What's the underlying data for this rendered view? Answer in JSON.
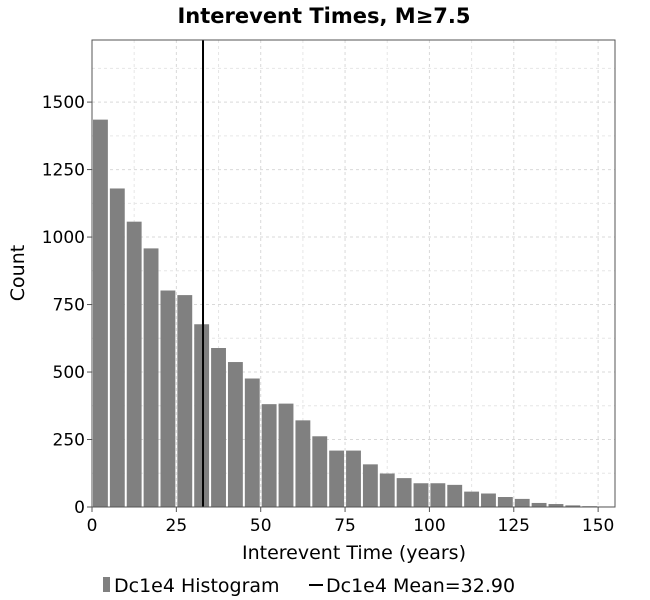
{
  "chart_data": {
    "type": "bar",
    "title": "Interevent Times, M≥7.5",
    "xlabel": "Interevent Time (years)",
    "ylabel": "Count",
    "xlim": [
      0,
      155
    ],
    "ylim": [
      0,
      1730
    ],
    "x_ticks": [
      0,
      25,
      50,
      75,
      100,
      125,
      150
    ],
    "y_ticks": [
      0,
      250,
      500,
      750,
      1000,
      1250,
      1500
    ],
    "grid": true,
    "bin_width": 5,
    "series": [
      {
        "name": "Dc1e4 Histogram",
        "color": "#808080",
        "bin_starts": [
          0,
          5,
          10,
          15,
          20,
          25,
          30,
          35,
          40,
          45,
          50,
          55,
          60,
          65,
          70,
          75,
          80,
          85,
          90,
          95,
          100,
          105,
          110,
          115,
          120,
          125,
          130,
          135,
          140,
          145,
          150
        ],
        "values": [
          1435,
          1180,
          1057,
          958,
          802,
          785,
          677,
          589,
          537,
          476,
          381,
          383,
          321,
          262,
          209,
          209,
          158,
          124,
          107,
          88,
          88,
          82,
          57,
          50,
          37,
          30,
          15,
          11,
          6,
          3,
          2
        ]
      }
    ],
    "mean_line": {
      "name": "Dc1e4 Mean=32.90",
      "x": 32.9,
      "color": "#000000"
    },
    "legend": {
      "position": "bottom",
      "histogram_label": "Dc1e4 Histogram",
      "mean_label": "Dc1e4 Mean=32.90"
    }
  }
}
